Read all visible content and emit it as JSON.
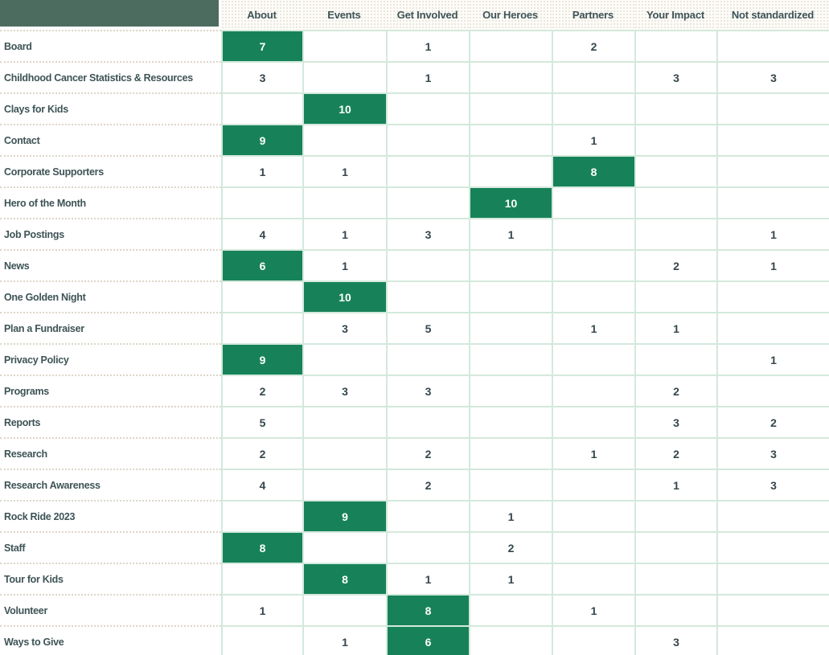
{
  "title": "Page content to standardized-category matrix",
  "colors": {
    "highlight_green": "#17825A",
    "corner_block_green": "#4C6C5F",
    "gridline_mint": "#D3E9DC",
    "label_dotted_separator": "#DDD6C8",
    "text_slate": "#3E5356",
    "number_slate": "#35464C",
    "header_bg": "#FDFCF9"
  },
  "chart_data": {
    "type": "heatmap",
    "title": "",
    "legend_position": "none",
    "grid": true,
    "highlight_rule": "cell value >= 6 is filled green with white text",
    "highlight_threshold": 6,
    "columns": [
      "About",
      "Events",
      "Get Involved",
      "Our Heroes",
      "Partners",
      "Your Impact",
      "Not standardized"
    ],
    "rows": [
      "Board",
      "Childhood Cancer Statistics & Resources",
      "Clays for Kids",
      "Contact",
      "Corporate Supporters",
      "Hero of the Month",
      "Job Postings",
      "News",
      "One Golden Night",
      "Plan a Fundraiser",
      "Privacy Policy",
      "Programs",
      "Reports",
      "Research",
      "Research Awareness",
      "Rock Ride 2023",
      "Staff",
      "Tour for Kids",
      "Volunteer",
      "Ways to Give"
    ],
    "values": [
      [
        7,
        null,
        1,
        null,
        2,
        null,
        null
      ],
      [
        3,
        null,
        1,
        null,
        null,
        3,
        3
      ],
      [
        null,
        10,
        null,
        null,
        null,
        null,
        null
      ],
      [
        9,
        null,
        null,
        null,
        1,
        null,
        null
      ],
      [
        1,
        1,
        null,
        null,
        8,
        null,
        null
      ],
      [
        null,
        null,
        null,
        10,
        null,
        null,
        null
      ],
      [
        4,
        1,
        3,
        1,
        null,
        null,
        1
      ],
      [
        6,
        1,
        null,
        null,
        null,
        2,
        1
      ],
      [
        null,
        10,
        null,
        null,
        null,
        null,
        null
      ],
      [
        null,
        3,
        5,
        null,
        1,
        1,
        null
      ],
      [
        9,
        null,
        null,
        null,
        null,
        null,
        1
      ],
      [
        2,
        3,
        3,
        null,
        null,
        2,
        null
      ],
      [
        5,
        null,
        null,
        null,
        null,
        3,
        2
      ],
      [
        2,
        null,
        2,
        null,
        1,
        2,
        3
      ],
      [
        4,
        null,
        2,
        null,
        null,
        1,
        3
      ],
      [
        null,
        9,
        null,
        1,
        null,
        null,
        null
      ],
      [
        8,
        null,
        null,
        2,
        null,
        null,
        null
      ],
      [
        null,
        8,
        1,
        1,
        null,
        null,
        null
      ],
      [
        1,
        null,
        8,
        null,
        1,
        null,
        null
      ],
      [
        null,
        1,
        6,
        null,
        null,
        3,
        null
      ]
    ]
  }
}
